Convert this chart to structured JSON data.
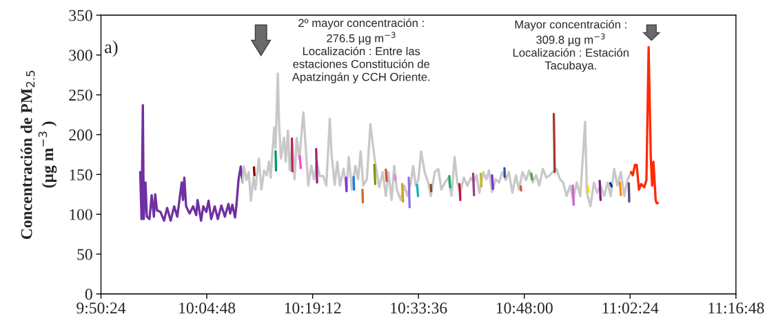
{
  "chart_data": {
    "type": "line",
    "ylabel": "Concentración de PM$_{2.5}$\n(µg m$^{−3}$ )",
    "annotations": [
      "a)",
      "2º mayor concentración :\n276.5 µg m$^{−3}$\nLocalización : Entre las\nestaciones Constitución de\nApatzingán y CCH Oriente.",
      "Mayor concentración :\n309.8 µg m$^{−3}$\nLocalización : Estación\nTacubaya."
    ],
    "xlim": [
      9.84,
      11.28
    ],
    "xticks": [
      {
        "value": 9.84,
        "label": "9:50:24"
      },
      {
        "value": 10.08,
        "label": "10:04:48"
      },
      {
        "value": 10.32,
        "label": "10:19:12"
      },
      {
        "value": 10.56,
        "label": "10:33:36"
      },
      {
        "value": 10.8,
        "label": "10:48:00"
      },
      {
        "value": 11.04,
        "label": "11:02:24"
      },
      {
        "value": 11.28,
        "label": "11:16:48"
      }
    ],
    "ylim": [
      0,
      350
    ],
    "yticks": [
      0,
      50,
      100,
      150,
      200,
      250,
      300,
      350
    ],
    "grid": false,
    "legend": false,
    "marker": "none",
    "line_style": "solid",
    "series": [
      {
        "color": "#7030a0",
        "x": [
          9.929,
          9.932,
          9.935,
          9.937,
          9.941,
          9.944,
          9.95,
          9.955,
          9.96,
          9.963,
          9.967,
          9.975,
          9.983,
          9.99,
          9.998,
          10.006,
          10.013,
          10.018,
          10.023,
          10.026,
          10.029,
          10.033,
          10.041,
          10.049,
          10.056,
          10.059,
          10.067,
          10.072,
          10.079,
          10.084,
          10.09,
          10.098,
          10.105,
          10.113,
          10.121,
          10.129,
          10.133,
          10.138,
          10.144,
          10.147,
          10.152,
          10.157,
          10.161
        ],
        "values": [
          153,
          94,
          237,
          94,
          140,
          97,
          94,
          124,
          97,
          125,
          105,
          103,
          92,
          108,
          92,
          110,
          97,
          118,
          140,
          118,
          146,
          110,
          101,
          110,
          99,
          118,
          92,
          110,
          103,
          117,
          94,
          110,
          94,
          111,
          97,
          113,
          101,
          112,
          96,
          110,
          144,
          160,
          140
        ]
      },
      {
        "color": "#c8c8c8",
        "x": [
          10.161,
          10.164,
          10.17,
          10.175,
          10.18,
          10.186,
          10.19,
          10.198,
          10.204,
          10.21,
          10.216,
          10.221,
          10.225,
          10.228,
          10.233,
          10.236,
          10.241,
          10.244,
          10.248,
          10.255,
          10.259,
          10.264,
          10.268,
          10.274,
          10.279,
          10.284,
          10.29,
          10.299,
          10.305,
          10.31,
          10.317,
          10.323,
          10.33,
          10.336,
          10.344,
          10.351,
          10.359,
          10.363,
          10.37,
          10.376,
          10.382,
          10.39,
          10.397,
          10.402,
          10.409,
          10.417,
          10.423,
          10.429,
          10.435,
          10.443,
          10.451,
          10.459,
          10.463,
          10.471,
          10.479,
          10.486,
          10.492,
          10.499,
          10.505,
          10.511,
          10.52,
          10.528,
          10.535,
          10.543,
          10.548,
          10.554,
          10.56,
          10.566,
          10.574,
          10.582,
          10.588,
          10.597,
          10.605,
          10.612,
          10.62,
          10.628,
          10.635,
          10.642,
          10.648,
          10.655,
          10.663,
          10.671,
          10.679,
          10.685,
          10.692,
          10.698,
          10.707,
          10.714,
          10.72,
          10.727,
          10.735,
          10.743,
          10.75,
          10.758,
          10.765,
          10.773,
          10.781,
          10.788,
          10.796,
          10.804,
          10.811,
          10.819,
          10.827,
          10.834,
          10.842,
          10.85,
          10.858,
          10.864,
          10.873,
          10.881,
          10.888,
          10.896,
          10.904,
          10.911,
          10.919,
          10.927,
          10.938,
          10.942,
          10.95,
          10.958,
          10.965,
          10.973,
          10.981,
          10.989,
          10.996,
          11.004,
          11.011,
          11.019,
          11.027,
          11.034,
          11.042
        ],
        "values": [
          140,
          160,
          143,
          153,
          117,
          146,
          131,
          170,
          131,
          155,
          149,
          166,
          146,
          172,
          209,
          183,
          276.5,
          213,
          170,
          196,
          166,
          205,
          155,
          188,
          144,
          196,
          170,
          228,
          179,
          136,
          161,
          144,
          166,
          148,
          148,
          136,
          220,
          175,
          137,
          166,
          136,
          157,
          131,
          172,
          131,
          161,
          144,
          179,
          136,
          144,
          213,
          177,
          161,
          134,
          153,
          123,
          153,
          118,
          161,
          131,
          118,
          136,
          123,
          140,
          161,
          136,
          144,
          179,
          153,
          140,
          123,
          153,
          157,
          131,
          140,
          146,
          123,
          172,
          140,
          127,
          146,
          136,
          146,
          140,
          149,
          127,
          153,
          144,
          155,
          128,
          144,
          140,
          153,
          143,
          153,
          127,
          149,
          131,
          153,
          143,
          155,
          140,
          149,
          136,
          157,
          146,
          149,
          153,
          157,
          144,
          140,
          123,
          136,
          118,
          140,
          123,
          216,
          127,
          110,
          140,
          127,
          136,
          123,
          140,
          123,
          157,
          136,
          153,
          123,
          143,
          153
        ]
      },
      {
        "color": "#ff2a00",
        "x": [
          11.042,
          11.046,
          11.051,
          11.055,
          11.06,
          11.065,
          11.072,
          11.077,
          11.082,
          11.087,
          11.09,
          11.093,
          11.098,
          11.1,
          11.103
        ],
        "values": [
          153,
          149,
          162,
          162,
          131,
          138,
          134,
          143,
          309.8,
          170,
          136,
          166,
          118,
          114,
          114
        ]
      },
      {
        "color": "#8b0000",
        "x": [
          10.187,
          10.188
        ],
        "values": [
          159,
          149
        ]
      },
      {
        "color": "#009966",
        "x": [
          10.236,
          10.237
        ],
        "values": [
          179,
          155
        ]
      },
      {
        "color": "#c0245a",
        "x": [
          10.273,
          10.274
        ],
        "values": [
          195,
          154
        ]
      },
      {
        "color": "#ff44dd",
        "x": [
          10.291,
          10.293
        ],
        "values": [
          173,
          158
        ]
      },
      {
        "color": "#a0207a",
        "x": [
          10.328,
          10.33
        ],
        "values": [
          182,
          140
        ]
      },
      {
        "color": "#8a2be2",
        "x": [
          10.396,
          10.397
        ],
        "values": [
          146,
          129
        ]
      },
      {
        "color": "#1e7fe0",
        "x": [
          10.413,
          10.414
        ],
        "values": [
          147,
          131
        ]
      },
      {
        "color": "#d2691e",
        "x": [
          10.433,
          10.434
        ],
        "values": [
          131,
          115
        ]
      },
      {
        "color": "#7a9a01",
        "x": [
          10.46,
          10.462
        ],
        "values": [
          162,
          138
        ]
      },
      {
        "color": "#e04a2a",
        "x": [
          10.486,
          10.488
        ],
        "values": [
          156,
          142
        ]
      },
      {
        "color": "#d58ad5",
        "x": [
          10.506,
          10.508
        ],
        "values": [
          149,
          143
        ]
      },
      {
        "color": "#d4a017",
        "x": [
          10.523,
          10.525
        ],
        "values": [
          138,
          116
        ]
      },
      {
        "color": "#8e70e8",
        "x": [
          10.538,
          10.54
        ],
        "values": [
          146,
          109
        ]
      },
      {
        "color": "#1ab0b8",
        "x": [
          10.557,
          10.559
        ],
        "values": [
          137,
          123
        ]
      },
      {
        "color": "#8b4a1f",
        "x": [
          10.588,
          10.589
        ],
        "values": [
          137,
          129
        ]
      },
      {
        "color": "#1aaa66",
        "x": [
          10.63,
          10.632
        ],
        "values": [
          148,
          134
        ]
      },
      {
        "color": "#c0143c",
        "x": [
          10.653,
          10.655
        ],
        "values": [
          138,
          118
        ]
      },
      {
        "color": "#a03a90",
        "x": [
          10.684,
          10.686
        ],
        "values": [
          151,
          124
        ]
      },
      {
        "color": "#c8b820",
        "x": [
          10.701,
          10.703
        ],
        "values": [
          151,
          135
        ]
      },
      {
        "color": "#7a30d0",
        "x": [
          10.727,
          10.729
        ],
        "values": [
          149,
          132
        ]
      },
      {
        "color": "#3a50b0",
        "x": [
          10.755,
          10.756
        ],
        "values": [
          158,
          147
        ]
      },
      {
        "color": "#d06020",
        "x": [
          10.792,
          10.793
        ],
        "values": [
          135,
          130
        ]
      },
      {
        "color": "#44aa33",
        "x": [
          10.816,
          10.818
        ],
        "values": [
          151,
          144
        ]
      },
      {
        "color": "#a03a30",
        "x": [
          10.867,
          10.869
        ],
        "values": [
          226,
          153
        ]
      },
      {
        "color": "#d060d0",
        "x": [
          10.91,
          10.912
        ],
        "values": [
          136,
          112
        ]
      },
      {
        "color": "#f0e000",
        "x": [
          10.944,
          10.946
        ],
        "values": [
          135,
          128
        ]
      },
      {
        "color": "#8a1a8a",
        "x": [
          10.971,
          10.973
        ],
        "values": [
          142,
          118
        ]
      },
      {
        "color": "#1020a0",
        "x": [
          10.995,
          10.998
        ],
        "values": [
          139,
          135
        ]
      },
      {
        "color": "#ff8800",
        "x": [
          11.017,
          11.019
        ],
        "values": [
          140,
          124
        ]
      },
      {
        "color": "#5a4a7a",
        "x": [
          11.037,
          11.038
        ],
        "values": [
          139,
          116
        ]
      }
    ]
  }
}
